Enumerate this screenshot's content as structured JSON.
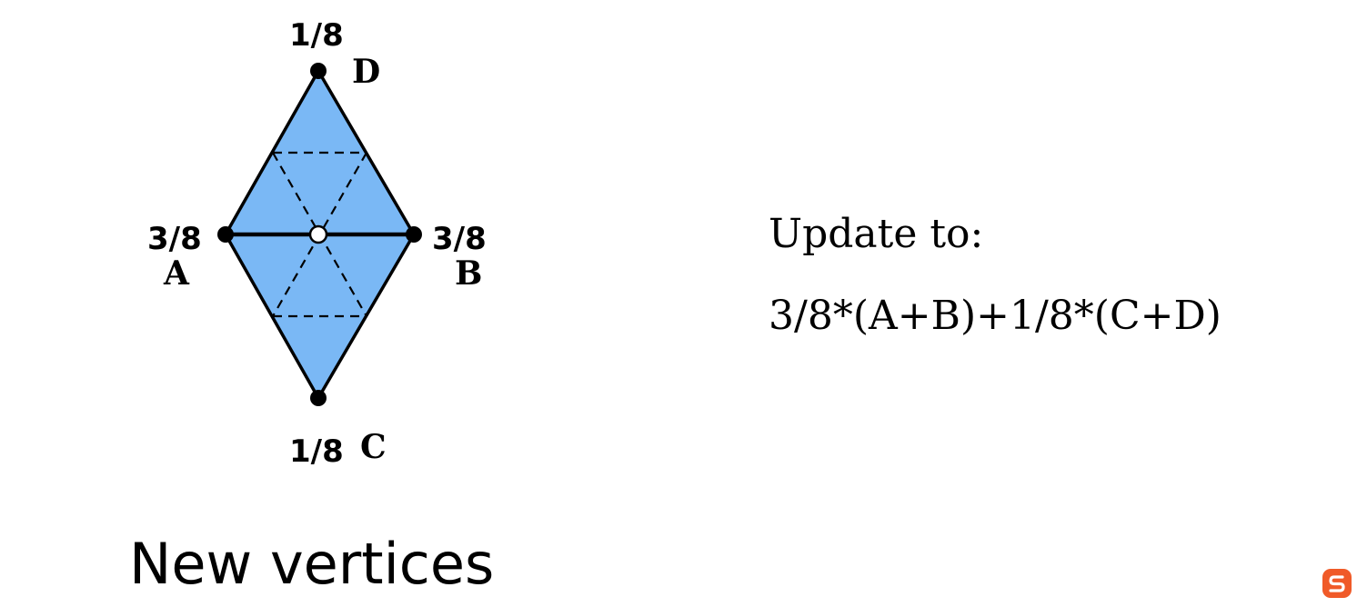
{
  "diagram": {
    "weights": {
      "top": "1/8",
      "left": "3/8",
      "right": "3/8",
      "bottom": "1/8"
    },
    "vertex_labels": {
      "top": "D",
      "left": "A",
      "right": "B",
      "bottom": "C"
    },
    "colors": {
      "fill": "#7ab8f5",
      "stroke": "#000000",
      "new_vertex": "#ffffff"
    }
  },
  "update": {
    "title": "Update to:",
    "formula": "3/8*(A+B)+1/8*(C+D)"
  },
  "section_title": "New vertices",
  "brand": {
    "icon": "s-logo-icon",
    "color": "#f05a28"
  }
}
